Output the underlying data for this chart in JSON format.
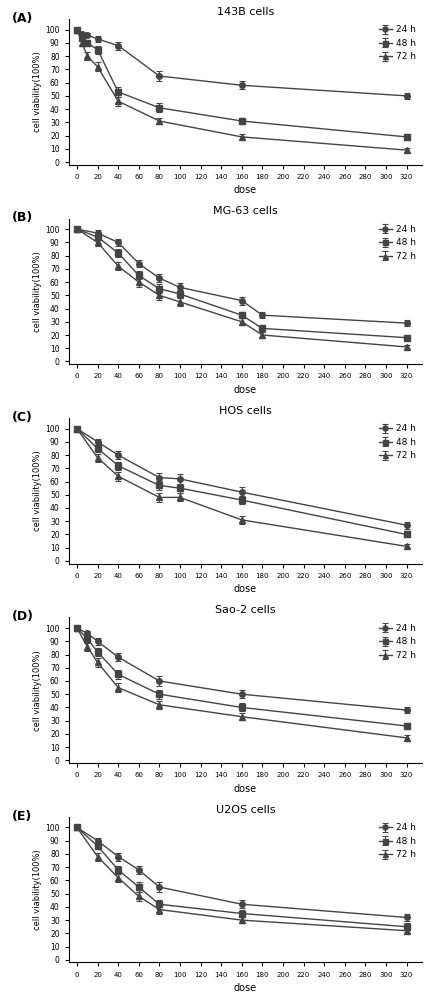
{
  "panels": [
    {
      "label": "(A)",
      "title": "143B cells",
      "doses": [
        0,
        5,
        10,
        20,
        40,
        80,
        160,
        320
      ],
      "series": [
        {
          "name": "24 h",
          "marker": "o",
          "color": "#444444",
          "values": [
            100,
            97,
            96,
            93,
            88,
            65,
            58,
            50
          ],
          "errors": [
            1.0,
            1.5,
            1.8,
            2.5,
            3.0,
            3.5,
            3.0,
            2.5
          ]
        },
        {
          "name": "48 h",
          "marker": "s",
          "color": "#444444",
          "values": [
            100,
            94,
            90,
            85,
            53,
            41,
            31,
            19
          ],
          "errors": [
            1.0,
            2.0,
            2.5,
            3.0,
            3.5,
            3.5,
            2.5,
            2.0
          ]
        },
        {
          "name": "72 h",
          "marker": "^",
          "color": "#444444",
          "values": [
            100,
            90,
            80,
            72,
            46,
            31,
            19,
            9
          ],
          "errors": [
            1.0,
            2.5,
            3.0,
            3.5,
            3.5,
            2.5,
            2.0,
            1.5
          ]
        }
      ]
    },
    {
      "label": "(B)",
      "title": "MG-63 cells",
      "doses": [
        0,
        20,
        40,
        60,
        80,
        100,
        160,
        180,
        320
      ],
      "series": [
        {
          "name": "24 h",
          "marker": "o",
          "color": "#444444",
          "values": [
            100,
            97,
            90,
            74,
            63,
            56,
            46,
            35,
            29
          ],
          "errors": [
            1.0,
            2.0,
            2.5,
            2.5,
            3.0,
            3.0,
            3.0,
            2.5,
            2.0
          ]
        },
        {
          "name": "48 h",
          "marker": "s",
          "color": "#444444",
          "values": [
            100,
            94,
            82,
            65,
            55,
            51,
            35,
            25,
            18
          ],
          "errors": [
            1.0,
            2.5,
            3.0,
            3.0,
            3.5,
            3.0,
            2.5,
            2.0,
            1.5
          ]
        },
        {
          "name": "72 h",
          "marker": "^",
          "color": "#444444",
          "values": [
            100,
            90,
            72,
            60,
            50,
            45,
            30,
            20,
            11
          ],
          "errors": [
            1.0,
            3.0,
            3.0,
            3.5,
            3.5,
            3.0,
            2.5,
            2.0,
            1.5
          ]
        }
      ]
    },
    {
      "label": "(C)",
      "title": "HOS cells",
      "doses": [
        0,
        20,
        40,
        80,
        100,
        160,
        320
      ],
      "series": [
        {
          "name": "24 h",
          "marker": "o",
          "color": "#444444",
          "values": [
            100,
            90,
            80,
            63,
            62,
            52,
            27
          ],
          "errors": [
            1.0,
            2.5,
            3.0,
            3.5,
            4.0,
            3.5,
            2.5
          ]
        },
        {
          "name": "48 h",
          "marker": "s",
          "color": "#444444",
          "values": [
            100,
            85,
            72,
            57,
            55,
            46,
            20
          ],
          "errors": [
            1.0,
            2.5,
            3.0,
            3.5,
            3.5,
            3.0,
            2.0
          ]
        },
        {
          "name": "72 h",
          "marker": "^",
          "color": "#444444",
          "values": [
            100,
            78,
            64,
            48,
            48,
            31,
            11
          ],
          "errors": [
            1.0,
            3.0,
            3.5,
            3.5,
            3.0,
            3.0,
            1.5
          ]
        }
      ]
    },
    {
      "label": "(D)",
      "title": "Sao-2 cells",
      "doses": [
        0,
        10,
        20,
        40,
        80,
        160,
        320
      ],
      "series": [
        {
          "name": "24 h",
          "marker": "o",
          "color": "#444444",
          "values": [
            100,
            96,
            90,
            78,
            60,
            50,
            38
          ],
          "errors": [
            1.0,
            2.0,
            2.5,
            3.0,
            3.5,
            3.0,
            2.5
          ]
        },
        {
          "name": "48 h",
          "marker": "s",
          "color": "#444444",
          "values": [
            100,
            92,
            82,
            65,
            50,
            40,
            26
          ],
          "errors": [
            1.0,
            2.5,
            3.0,
            3.5,
            3.5,
            3.0,
            2.5
          ]
        },
        {
          "name": "72 h",
          "marker": "^",
          "color": "#444444",
          "values": [
            100,
            86,
            74,
            55,
            42,
            33,
            17
          ],
          "errors": [
            1.0,
            3.0,
            3.5,
            3.5,
            3.0,
            2.5,
            2.0
          ]
        }
      ]
    },
    {
      "label": "(E)",
      "title": "U2OS cells",
      "doses": [
        0,
        20,
        40,
        60,
        80,
        160,
        320
      ],
      "series": [
        {
          "name": "24 h",
          "marker": "o",
          "color": "#444444",
          "values": [
            100,
            90,
            78,
            68,
            55,
            42,
            32
          ],
          "errors": [
            1.0,
            2.0,
            3.0,
            3.0,
            3.5,
            3.0,
            2.5
          ]
        },
        {
          "name": "48 h",
          "marker": "s",
          "color": "#444444",
          "values": [
            100,
            86,
            68,
            55,
            42,
            35,
            25
          ],
          "errors": [
            1.0,
            2.5,
            3.0,
            3.5,
            3.5,
            3.0,
            2.5
          ]
        },
        {
          "name": "72 h",
          "marker": "^",
          "color": "#444444",
          "values": [
            100,
            78,
            62,
            48,
            38,
            30,
            22
          ],
          "errors": [
            1.0,
            3.0,
            3.5,
            3.5,
            3.0,
            2.5,
            2.0
          ]
        }
      ]
    }
  ],
  "xticks": [
    0,
    20,
    40,
    60,
    80,
    100,
    120,
    140,
    160,
    180,
    200,
    220,
    240,
    260,
    280,
    300,
    320
  ],
  "yticks": [
    0,
    10,
    20,
    30,
    40,
    50,
    60,
    70,
    80,
    90,
    100
  ],
  "xlabel": "dose",
  "ylabel": "cell viability(100%)",
  "ylim": [
    -2,
    108
  ],
  "xlim": [
    -8,
    335
  ]
}
